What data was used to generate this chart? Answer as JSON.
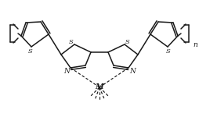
{
  "bg_color": "#ffffff",
  "line_color": "#1a1a1a",
  "lw": 1.1,
  "figsize": [
    2.54,
    1.45
  ],
  "dpi": 100,
  "note_n": "n",
  "label_S": "S",
  "label_N": "N",
  "label_M": "M"
}
